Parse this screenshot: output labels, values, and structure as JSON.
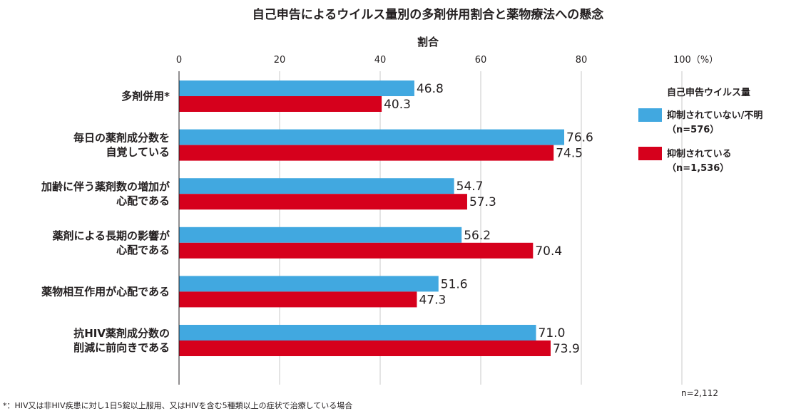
{
  "chart_data": {
    "type": "bar",
    "orientation": "horizontal",
    "title": "自己申告によるウイルス量別の多剤併用割合と薬物療法への懸念",
    "xlabel": "割合",
    "xlim": [
      0,
      100
    ],
    "x_ticks": [
      "0",
      "20",
      "40",
      "60",
      "80",
      "100（%）"
    ],
    "x_tick_values": [
      0,
      20,
      40,
      60,
      80,
      100
    ],
    "categories": [
      [
        "多剤併用*"
      ],
      [
        "毎日の薬剤成分数を",
        "自覚している"
      ],
      [
        "加齢に伴う薬剤数の増加が",
        "心配である"
      ],
      [
        "薬剤による長期の影響が",
        "心配である"
      ],
      [
        "薬物相互作用が心配である"
      ],
      [
        "抗HIV薬剤成分数の",
        "削減に前向きである"
      ]
    ],
    "series": [
      {
        "name_lines": [
          "抑制されていない/不明",
          "（n=576）"
        ],
        "color": "#41a8e0",
        "values": [
          46.8,
          76.6,
          54.7,
          56.2,
          51.6,
          71.0
        ],
        "value_labels": [
          "46.8",
          "76.6",
          "54.7",
          "56.2",
          "51.6",
          "71.0"
        ]
      },
      {
        "name_lines": [
          "抑制されている",
          "（n=1,536）"
        ],
        "color": "#d6001c",
        "values": [
          40.3,
          74.5,
          57.3,
          70.4,
          47.3,
          73.9
        ],
        "value_labels": [
          "40.3",
          "74.5",
          "57.3",
          "70.4",
          "47.3",
          "73.9"
        ]
      }
    ],
    "legend_title": "自己申告ウイルス量",
    "legend_position": "right",
    "grid": "vertical",
    "grid_color": "#c9c9c9",
    "footnote": "*：HIV又は非HIV疾患に対し1日5錠以上服用、又はHIVを含む5種類以上の症状で治療している場合",
    "sample_note": "n=2,112"
  }
}
